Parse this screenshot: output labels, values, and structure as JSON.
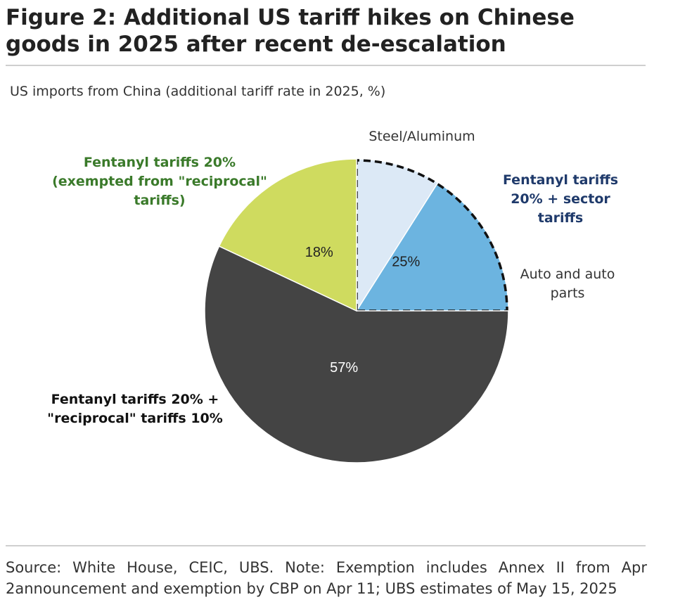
{
  "figure": {
    "title": "Figure 2: Additional US tariff hikes on Chinese goods in 2025 after recent de-escalation",
    "subtitle": "US imports from China (additional tariff rate in 2025, %)",
    "source": "Source: White House, CEIC, UBS. Note: Exemption includes Annex II from Apr 2announcement and exemption by CBP on Apr 11; UBS estimates of May 15, 2025"
  },
  "chart_data": {
    "type": "pie",
    "title": "US imports from China (additional tariff rate in 2025, %)",
    "slices": [
      {
        "name": "Fentanyl tariffs 20% + sector tariffs",
        "value": 25,
        "label": "25%",
        "color": "#6cb4e0"
      },
      {
        "name": "Fentanyl tariffs 20% + \"reciprocal\" tariffs 10%",
        "value": 57,
        "label": "57%",
        "color": "#444444"
      },
      {
        "name": "Fentanyl tariffs 20% (exempted from \"reciprocal\" tariffs)",
        "value": 18,
        "label": "18%",
        "color": "#cfdb5f"
      }
    ],
    "sub_slices": [
      {
        "parent": "Fentanyl tariffs 20% + sector tariffs",
        "name": "Steel/Aluminum",
        "value": 9,
        "color": "#dce9f6"
      },
      {
        "parent": "Fentanyl tariffs 20% + sector tariffs",
        "name": "Auto and auto parts",
        "value": 16,
        "color": "#6cb4e0"
      }
    ],
    "category_labels": {
      "sector_line1": "Fentanyl tariffs",
      "sector_line2": "20% + sector",
      "sector_line3": "tariffs",
      "steel": "Steel/Aluminum",
      "auto_line1": "Auto and auto",
      "auto_line2": "parts",
      "exempt_line1": "Fentanyl tariffs 20%",
      "exempt_line2": "(exempted from \"reciprocal\"",
      "exempt_line3": "tariffs)",
      "recip_line1": "Fentanyl tariffs 20% +",
      "recip_line2": "\"reciprocal\" tariffs 10%"
    },
    "label_colors": {
      "sector": "#1f3a6b",
      "exempt": "#3a7a2a",
      "recip": "#111111"
    },
    "start_angle_deg": 0,
    "direction": "clockwise",
    "dashed_highlight": "Fentanyl tariffs 20% + sector tariffs"
  }
}
